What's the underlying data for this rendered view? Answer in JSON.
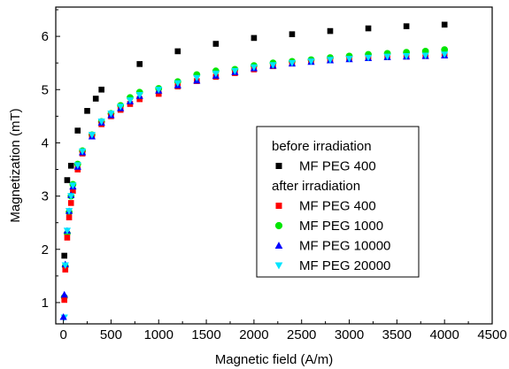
{
  "chart_data": {
    "type": "scatter",
    "title": "",
    "xlabel": "Magnetic field (A/m)",
    "ylabel": "Magnetization (mT)",
    "xlim": [
      -80,
      4500
    ],
    "ylim": [
      0.6,
      6.55
    ],
    "xticks": [
      0,
      500,
      1000,
      1500,
      2000,
      2500,
      3000,
      3500,
      4000,
      4500
    ],
    "yticks": [
      1,
      2,
      3,
      4,
      5,
      6
    ],
    "grid": false,
    "legend_position": "center-right",
    "legend_groups": [
      {
        "heading": "before irradiation",
        "series": [
          0
        ]
      },
      {
        "heading": "after irradiation",
        "series": [
          1,
          2,
          3,
          4
        ]
      }
    ],
    "x": [
      10,
      20,
      40,
      60,
      80,
      100,
      150,
      200,
      300,
      400,
      500,
      600,
      700,
      800,
      1000,
      1200,
      1400,
      1600,
      1800,
      2000,
      2200,
      2400,
      2600,
      2800,
      3000,
      3200,
      3400,
      3600,
      3800,
      4000
    ],
    "series": [
      {
        "name": "MF PEG 400",
        "marker": "square",
        "color": "#000000",
        "x": [
          10,
          40,
          80,
          150,
          250,
          340,
          400,
          800,
          1200,
          1600,
          2000,
          2400,
          2800,
          3200,
          3600,
          4000
        ],
        "values": [
          1.88,
          3.3,
          3.57,
          4.23,
          4.6,
          4.83,
          5.0,
          5.48,
          5.72,
          5.86,
          5.97,
          6.04,
          6.1,
          6.15,
          6.19,
          6.22
        ]
      },
      {
        "name": "MF PEG 400",
        "marker": "square",
        "color": "#ff0000",
        "values": [
          1.05,
          1.62,
          2.22,
          2.6,
          2.87,
          3.1,
          3.5,
          3.8,
          4.12,
          4.35,
          4.5,
          4.62,
          4.73,
          4.82,
          4.92,
          5.06,
          5.16,
          5.24,
          5.31,
          5.38,
          5.44,
          5.49,
          5.53,
          5.56,
          5.58,
          5.6,
          5.61,
          5.62,
          5.63,
          5.64
        ]
      },
      {
        "name": "MF PEG 1000",
        "marker": "circle",
        "color": "#00e600",
        "values": [
          1.1,
          1.68,
          2.3,
          2.7,
          3.0,
          3.22,
          3.6,
          3.85,
          4.15,
          4.4,
          4.55,
          4.7,
          4.85,
          4.95,
          5.02,
          5.15,
          5.28,
          5.35,
          5.38,
          5.45,
          5.5,
          5.53,
          5.56,
          5.6,
          5.63,
          5.66,
          5.68,
          5.7,
          5.72,
          5.75
        ]
      },
      {
        "name": "MF PEG 10000",
        "marker": "triangle-up",
        "color": "#0000ff",
        "values": [
          1.15,
          1.72,
          2.35,
          2.72,
          3.02,
          3.18,
          3.55,
          3.82,
          4.12,
          4.38,
          4.52,
          4.65,
          4.78,
          4.88,
          4.98,
          5.08,
          5.17,
          5.26,
          5.33,
          5.4,
          5.45,
          5.49,
          5.52,
          5.55,
          5.57,
          5.59,
          5.61,
          5.62,
          5.63,
          5.64
        ]
      },
      {
        "name": "MF PEG 20000",
        "marker": "triangle-down",
        "color": "#00e5ff",
        "values": [
          0.72,
          1.7,
          2.35,
          2.72,
          3.0,
          3.2,
          3.58,
          3.84,
          4.15,
          4.4,
          4.55,
          4.68,
          4.8,
          4.9,
          5.0,
          5.12,
          5.22,
          5.3,
          5.35,
          5.42,
          5.46,
          5.5,
          5.53,
          5.56,
          5.58,
          5.6,
          5.62,
          5.63,
          5.64,
          5.66
        ]
      }
    ],
    "extra_points": [
      {
        "series": 3,
        "x": 0,
        "y": 0.73
      }
    ]
  }
}
